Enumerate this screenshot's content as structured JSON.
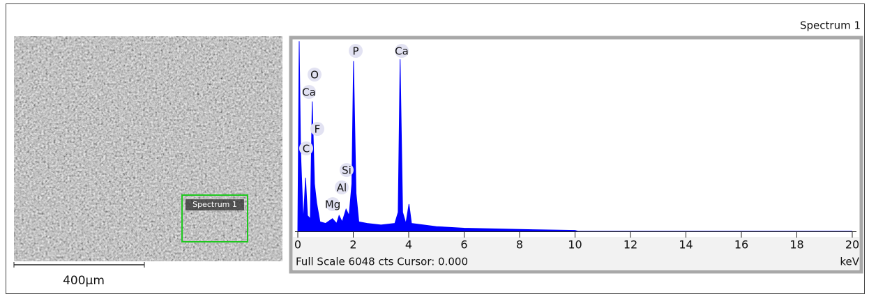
{
  "sem_image": {
    "region_label": "Spectrum 1",
    "scale_bar": "400μm"
  },
  "chart_data": {
    "type": "area",
    "title": "Spectrum 1",
    "x": [
      0,
      0.05,
      0.1,
      0.2,
      0.28,
      0.35,
      0.45,
      0.52,
      0.6,
      0.68,
      0.8,
      1.0,
      1.25,
      1.4,
      1.49,
      1.6,
      1.74,
      1.85,
      1.95,
      2.01,
      2.1,
      2.2,
      2.5,
      3.0,
      3.5,
      3.62,
      3.69,
      3.78,
      3.9,
      4.01,
      4.1,
      5,
      6,
      8,
      10,
      10.1,
      20
    ],
    "values": [
      0,
      6000,
      2500,
      300,
      1690,
      500,
      400,
      4100,
      1500,
      900,
      300,
      250,
      400,
      250,
      500,
      300,
      700,
      500,
      1500,
      5370,
      1200,
      300,
      250,
      200,
      250,
      600,
      5430,
      600,
      250,
      860,
      250,
      150,
      100,
      60,
      30,
      0,
      0
    ],
    "color": "#0000ff",
    "xlim": [
      0,
      20
    ],
    "xticks": [
      0,
      2,
      4,
      6,
      8,
      10,
      12,
      14,
      16,
      18,
      20
    ],
    "ylim": [
      0,
      6048
    ],
    "peak_labels": [
      "P",
      "Ca",
      "O",
      "Ca",
      "F",
      "C",
      "Si",
      "Al",
      "Mg"
    ],
    "footer": "Full Scale 6048 cts Cursor: 0.000",
    "x_unit": "keV"
  }
}
